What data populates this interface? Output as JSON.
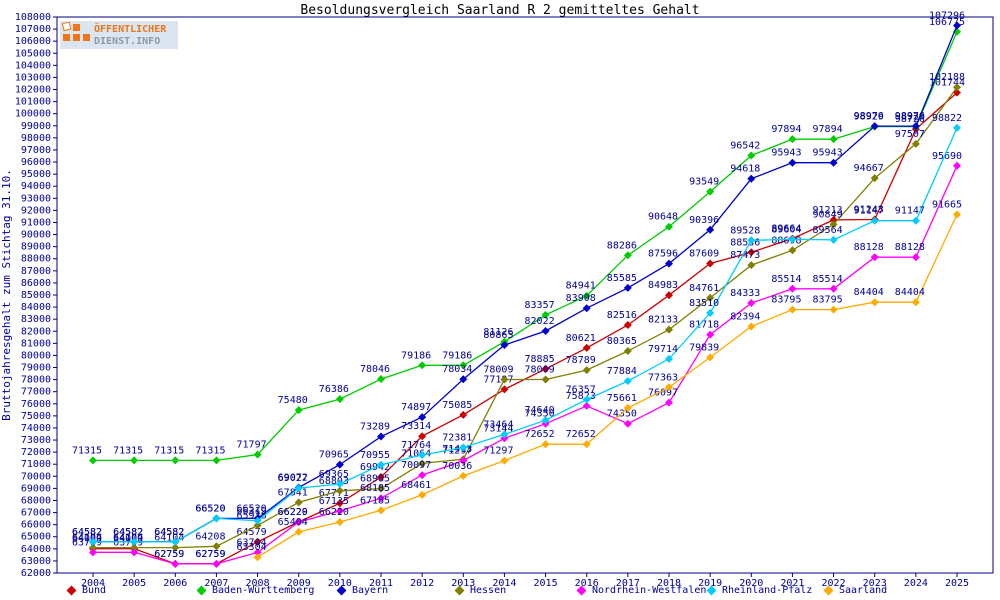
{
  "title": "Besoldungsvergleich Saarland R 2 gemitteltes Gehalt",
  "y_axis_label": "Bruttojahresgehalt zum Stichtag 31.10.",
  "logo": {
    "line1": "ÖFFENTLICHER",
    "line2": "DIENST.INFO",
    "orange": "#ee7519",
    "gray": "#8d99a8",
    "background": "#dce6f0"
  },
  "colors": {
    "axis": "#000080",
    "tick_text": "#000099",
    "point_label": "#000099",
    "title_text": "#000000"
  },
  "chart_data": {
    "type": "line",
    "title": "Besoldungsvergleich Saarland R 2 gemitteltes Gehalt",
    "xlabel": "",
    "ylabel": "Bruttojahresgehalt zum Stichtag 31.10.",
    "ylim": [
      62000,
      108000
    ],
    "ytick_step": 1000,
    "grid": false,
    "legend_position": "bottom",
    "point_labels": true,
    "x": [
      2004,
      2005,
      2006,
      2007,
      2008,
      2009,
      2010,
      2011,
      2012,
      2013,
      2014,
      2015,
      2016,
      2017,
      2018,
      2019,
      2020,
      2021,
      2022,
      2023,
      2024,
      2025
    ],
    "series": [
      {
        "name": "Bund",
        "color": "#cc0000",
        "values": [
          64009,
          64009,
          62759,
          62759,
          64579,
          66229,
          67771,
          69942,
          73314,
          75085,
          77187,
          78885,
          80621,
          82516,
          84983,
          87609,
          88536,
          89664,
          91213,
          91243,
          98726,
          101744
        ]
      },
      {
        "name": "Baden-Württemberg",
        "color": "#00cc00",
        "values": [
          71315,
          71315,
          71315,
          71315,
          71797,
          75480,
          76386,
          78046,
          79186,
          79186,
          81126,
          83357,
          84941,
          88286,
          90648,
          93549,
          96542,
          97894,
          97894,
          98929,
          98929,
          106775
        ]
      },
      {
        "name": "Bayern",
        "color": "#0000cc",
        "values": [
          64582,
          64582,
          64582,
          66520,
          66520,
          69072,
          70965,
          73289,
          74897,
          78034,
          80865,
          82022,
          83908,
          85585,
          87596,
          90396,
          94618,
          95943,
          95943,
          98976,
          98976,
          107296
        ]
      },
      {
        "name": "Hessen",
        "color": "#808000",
        "values": [
          64104,
          64104,
          64104,
          64208,
          65938,
          67841,
          68803,
          68985,
          71064,
          71413,
          78009,
          78009,
          78789,
          80365,
          82133,
          84761,
          87473,
          88698,
          90849,
          94667,
          97507,
          102188
        ]
      },
      {
        "name": "Nordrhein-Westfalen",
        "color": "#ff00ff",
        "values": [
          63709,
          63709,
          62759,
          62759,
          63704,
          66220,
          67135,
          68185,
          70097,
          71297,
          73144,
          74350,
          75823,
          74350,
          76097,
          81718,
          84333,
          85514,
          85514,
          88128,
          88128,
          95690
        ]
      },
      {
        "name": "Rheinland-Pfalz",
        "color": "#00ccff",
        "values": [
          64582,
          64582,
          64582,
          66520,
          66319,
          69027,
          69365,
          70955,
          71764,
          72381,
          73464,
          74640,
          76357,
          77884,
          79714,
          83510,
          89528,
          89604,
          89564,
          91147,
          91147,
          98822
        ]
      },
      {
        "name": "Saarland",
        "color": "#ffaa00",
        "values": [
          null,
          null,
          null,
          null,
          63304,
          65404,
          66220,
          67185,
          68461,
          70036,
          71297,
          72652,
          72652,
          75661,
          77363,
          79839,
          82394,
          83795,
          83795,
          84404,
          84404,
          91665
        ]
      }
    ]
  }
}
